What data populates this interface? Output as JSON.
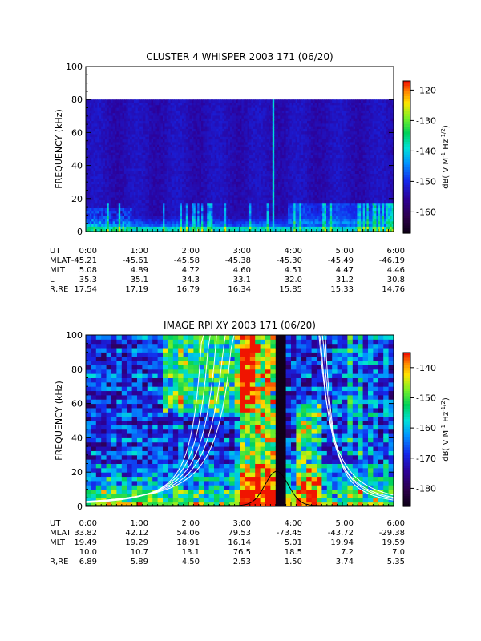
{
  "chart_data": [
    {
      "type": "heatmap",
      "title": "CLUSTER 4 WHISPER 2003 171 (06/20)",
      "ylabel": "FREQUENCY (kHz)",
      "ylim": [
        0,
        100
      ],
      "y_ticks": [
        "0",
        "20",
        "40",
        "60",
        "80",
        "100"
      ],
      "x_ticks": [
        "0:00",
        "1:00",
        "2:00",
        "3:00",
        "4:00",
        "5:00",
        "6:00"
      ],
      "xlim_hours": [
        0,
        6
      ],
      "data_top_khz": 80,
      "colorbar": {
        "label_main": "dB( V M",
        "label_sup1": "-1",
        "label_mid": " Hz",
        "label_sup2": "-1/2",
        "label_end": ")",
        "ticks": [
          "-120",
          "-130",
          "-140",
          "-150",
          "-160"
        ],
        "tick_values": [
          -120,
          -130,
          -140,
          -150,
          -160
        ],
        "range": [
          -167,
          -117
        ]
      },
      "row_labels": [
        "UT",
        "MLAT",
        "MLT",
        "L",
        "R,RE"
      ],
      "rows": [
        [
          "-45.21",
          "-45.61",
          "-45.58",
          "-45.38",
          "-45.30",
          "-45.49",
          "-46.19"
        ],
        [
          "5.08",
          "4.89",
          "4.72",
          "4.60",
          "4.51",
          "4.47",
          "4.46"
        ],
        [
          "35.3",
          "35.1",
          "34.3",
          "33.1",
          "32.0",
          "31.2",
          "30.8"
        ],
        [
          "17.54",
          "17.19",
          "16.79",
          "16.34",
          "15.85",
          "15.33",
          "14.76"
        ]
      ]
    },
    {
      "type": "heatmap",
      "title": "IMAGE RPI XY 2003 171 (06/20)",
      "ylabel": "FREQUENCY (kHz)",
      "ylim": [
        0,
        100
      ],
      "y_ticks": [
        "0",
        "20",
        "40",
        "60",
        "80",
        "100"
      ],
      "x_ticks": [
        "0:00",
        "1:00",
        "2:00",
        "3:00",
        "4:00",
        "5:00",
        "6:00"
      ],
      "xlim_hours": [
        0,
        6
      ],
      "colorbar": {
        "label_main": "dB( V M",
        "label_sup1": "-1",
        "label_mid": " Hz",
        "label_sup2": "-1/2",
        "label_end": ")",
        "ticks": [
          "-140",
          "-150",
          "-160",
          "-170",
          "-180"
        ],
        "tick_values": [
          -140,
          -150,
          -160,
          -170,
          -180
        ],
        "range": [
          -186,
          -135
        ]
      },
      "overlay_curves": "white cyclotron/plasma frequency curves and black curve peaking near 3:45 at about 20 kHz",
      "row_labels": [
        "UT",
        "MLAT",
        "MLT",
        "L",
        "R,RE"
      ],
      "rows": [
        [
          "33.82",
          "42.12",
          "54.06",
          "79.53",
          "-73.45",
          "-43.72",
          "-29.38"
        ],
        [
          "19.49",
          "19.29",
          "18.91",
          "16.14",
          "5.01",
          "19.94",
          "19.59"
        ],
        [
          "10.0",
          "10.7",
          "13.1",
          "76.5",
          "18.5",
          "7.2",
          "7.0"
        ],
        [
          "6.89",
          "5.89",
          "4.50",
          "2.53",
          "1.50",
          "3.74",
          "5.35"
        ]
      ]
    }
  ]
}
